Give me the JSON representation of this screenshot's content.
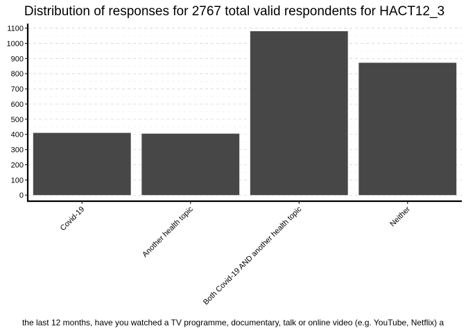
{
  "chart_data": {
    "type": "bar",
    "title": "Distribution of responses for 2767 total valid respondents for HACT12_3",
    "xlabel": "the last 12 months, have you watched a TV programme, documentary, talk or online video (e.g. YouTube, Netflix) a",
    "ylabel": "",
    "categories": [
      "Covid-19",
      "Another health topic",
      "Both Covid-19 AND another health topic",
      "Neither"
    ],
    "values": [
      410,
      405,
      1080,
      872
    ],
    "ylim": [
      -40,
      1130
    ],
    "yticks": [
      0,
      100,
      200,
      300,
      400,
      500,
      600,
      700,
      800,
      900,
      1000,
      1100
    ],
    "bar_color": "#474747",
    "grid": true,
    "legend": "none"
  }
}
